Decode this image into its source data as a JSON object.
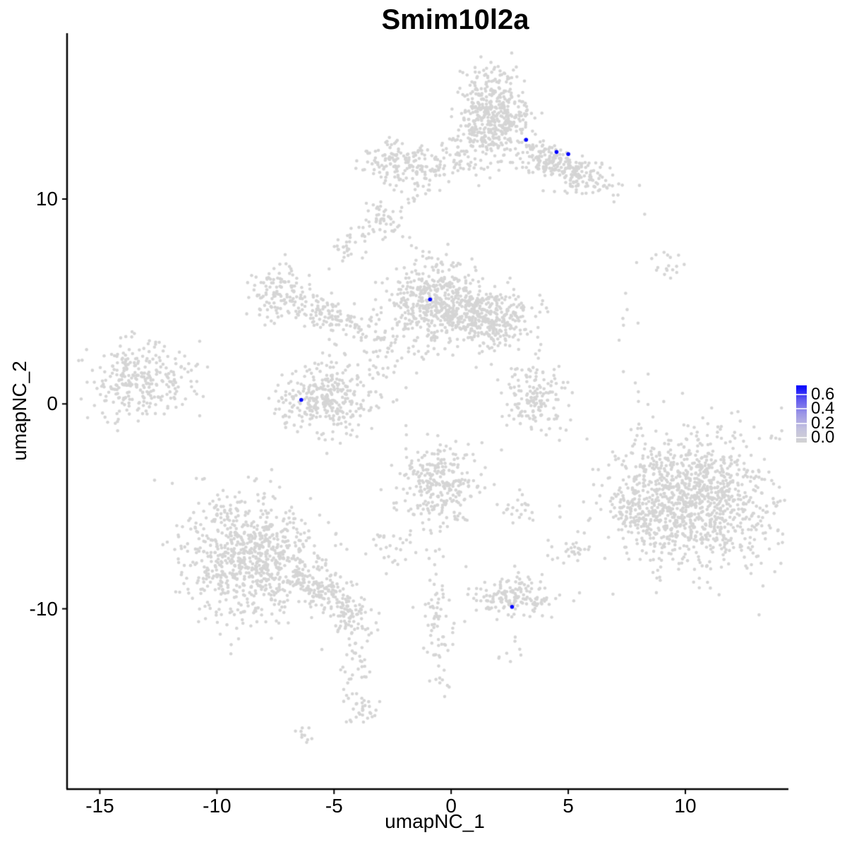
{
  "chart_data": {
    "type": "scatter",
    "title": "Smim10l2a",
    "xlabel": "umapNC_1",
    "ylabel": "umapNC_2",
    "xlim": [
      -16.4,
      14.4
    ],
    "ylim": [
      -18.8,
      18.1
    ],
    "x_ticks": [
      -15,
      -10,
      -5,
      0,
      5,
      10
    ],
    "y_ticks": [
      10,
      0,
      -10
    ],
    "grid": false,
    "legend": {
      "position": "right",
      "ticks": [
        0.6,
        0.4,
        0.2,
        0.0
      ],
      "tick_labels": [
        "0.6",
        "0.4",
        "0.2",
        "0.0"
      ],
      "bar_value_range": [
        -0.07,
        0.73
      ],
      "color_low": "#D3D3D3",
      "color_high": "#0000FF"
    },
    "points": {
      "base_color": "#D5D5D5",
      "highlight_color": "#0000FF",
      "base_radius_px": 2.3,
      "highlight_radius_px": 2.8
    },
    "seed": 42,
    "expressing_cells": [
      {
        "x": 3.2,
        "y": 12.9,
        "value": 0.6
      },
      {
        "x": 4.5,
        "y": 12.3,
        "value": 0.6
      },
      {
        "x": 5.0,
        "y": 12.2,
        "value": 0.6
      },
      {
        "x": -0.9,
        "y": 5.1,
        "value": 0.6
      },
      {
        "x": -6.4,
        "y": 0.2,
        "value": 0.6
      },
      {
        "x": 2.6,
        "y": -9.9,
        "value": 0.6
      }
    ],
    "background_clusters": [
      {
        "name": "top-center-main",
        "cx": 1.7,
        "cy": 14.1,
        "sx": 0.78,
        "sy": 1.05,
        "rot": 0,
        "n": 470
      },
      {
        "name": "top-right-arm",
        "cx": 4.7,
        "cy": 11.6,
        "sx": 1.25,
        "sy": 0.45,
        "rot": -28,
        "n": 270
      },
      {
        "name": "top-left-lobe",
        "cx": -2.0,
        "cy": 11.7,
        "sx": 0.85,
        "sy": 0.55,
        "rot": -8,
        "n": 160
      },
      {
        "name": "top-bridge",
        "cx": 0.2,
        "cy": 11.9,
        "sx": 0.6,
        "sy": 0.42,
        "rot": 0,
        "n": 50
      },
      {
        "name": "top-neck-sparse",
        "cx": -1.3,
        "cy": 10.4,
        "sx": 0.55,
        "sy": 0.4,
        "rot": 35,
        "n": 16
      },
      {
        "name": "upper-small-blob",
        "cx": -2.85,
        "cy": 9.0,
        "sx": 0.33,
        "sy": 0.5,
        "rot": 15,
        "n": 45
      },
      {
        "name": "upper-left-dots",
        "cx": -4.55,
        "cy": 7.6,
        "sx": 0.42,
        "sy": 0.42,
        "rot": 0,
        "n": 26
      },
      {
        "name": "upper-bridge-dots",
        "cx": -3.7,
        "cy": 8.35,
        "sx": 0.3,
        "sy": 0.28,
        "rot": 0,
        "n": 9
      },
      {
        "name": "mid-main",
        "cx": -0.75,
        "cy": 5.0,
        "sx": 0.9,
        "sy": 1.1,
        "rot": 0,
        "n": 430
      },
      {
        "name": "mid-right-lobe",
        "cx": 1.9,
        "cy": 4.2,
        "sx": 0.85,
        "sy": 0.7,
        "rot": 0,
        "n": 260
      },
      {
        "name": "mid-band",
        "cx": 0.6,
        "cy": 4.3,
        "sx": 0.8,
        "sy": 0.5,
        "rot": 0,
        "n": 120
      },
      {
        "name": "mid-left-ring",
        "cx": -7.3,
        "cy": 5.35,
        "sx": 0.62,
        "sy": 0.68,
        "rot": 0,
        "n": 120
      },
      {
        "name": "ring-arm",
        "cx": -5.6,
        "cy": 4.6,
        "sx": 0.9,
        "sy": 0.35,
        "rot": -25,
        "n": 70
      },
      {
        "name": "mid-left-scatter",
        "cx": -4.2,
        "cy": 3.9,
        "sx": 1.2,
        "sy": 0.5,
        "rot": -15,
        "n": 60
      },
      {
        "name": "left-c-cluster",
        "cx": -5.5,
        "cy": 0.3,
        "sx": 1.05,
        "sy": 0.85,
        "rot": 0,
        "n": 310
      },
      {
        "name": "mid-lower-bridge",
        "cx": -2.9,
        "cy": 2.3,
        "sx": 0.7,
        "sy": 0.9,
        "rot": 25,
        "n": 55
      },
      {
        "name": "far-left-cluster",
        "cx": -13.35,
        "cy": 1.1,
        "sx": 1.05,
        "sy": 0.9,
        "rot": 0,
        "n": 270
      },
      {
        "name": "far-left-tail",
        "cx": -11.0,
        "cy": 1.5,
        "sx": 0.6,
        "sy": 0.8,
        "rot": 0,
        "n": 14
      },
      {
        "name": "right-c-cluster",
        "cx": 3.5,
        "cy": 0.3,
        "sx": 0.72,
        "sy": 0.95,
        "rot": 0,
        "n": 160
      },
      {
        "name": "right-sparse-column",
        "cx": 7.85,
        "cy": -0.3,
        "sx": 0.3,
        "sy": 1.2,
        "rot": 0,
        "n": 13
      },
      {
        "name": "big-right-cluster",
        "cx": 10.3,
        "cy": -4.7,
        "sx": 1.75,
        "sy": 1.6,
        "rot": -15,
        "n": 1150
      },
      {
        "name": "big-right-wedge",
        "cx": 7.9,
        "cy": -5.3,
        "sx": 0.5,
        "sy": 0.6,
        "rot": 0,
        "n": 70
      },
      {
        "name": "bottom-left-cluster",
        "cx": -8.5,
        "cy": -7.5,
        "sx": 1.45,
        "sy": 1.55,
        "rot": 0,
        "n": 800
      },
      {
        "name": "bottom-left-arm",
        "cx": -5.6,
        "cy": -9.0,
        "sx": 1.0,
        "sy": 0.5,
        "rot": -28,
        "n": 150
      },
      {
        "name": "bottom-arm-blob",
        "cx": -4.2,
        "cy": -10.4,
        "sx": 0.45,
        "sy": 0.5,
        "rot": 0,
        "n": 60
      },
      {
        "name": "thin-vertical-trail",
        "cx": -4.1,
        "cy": -12.6,
        "sx": 0.26,
        "sy": 1.25,
        "rot": 0,
        "n": 45
      },
      {
        "name": "trail-end-blob",
        "cx": -3.8,
        "cy": -15.05,
        "sx": 0.32,
        "sy": 0.38,
        "rot": 0,
        "n": 26
      },
      {
        "name": "tiny-bottom-blob",
        "cx": -6.25,
        "cy": -16.2,
        "sx": 0.27,
        "sy": 0.22,
        "rot": 0,
        "n": 10
      },
      {
        "name": "center-lower-cluster",
        "cx": -0.5,
        "cy": -3.95,
        "sx": 0.85,
        "sy": 1.05,
        "rot": 0,
        "n": 280
      },
      {
        "name": "center-lower-pair",
        "cx": 2.9,
        "cy": -5.05,
        "sx": 0.38,
        "sy": 0.32,
        "rot": 0,
        "n": 22
      },
      {
        "name": "bottom-center-cluster",
        "cx": 2.6,
        "cy": -9.45,
        "sx": 0.92,
        "sy": 0.5,
        "rot": 0,
        "n": 160
      },
      {
        "name": "bottom-center-trail",
        "cx": -0.6,
        "cy": -10.9,
        "sx": 0.3,
        "sy": 1.5,
        "rot": 0,
        "n": 70
      },
      {
        "name": "small-lower-right",
        "cx": 5.0,
        "cy": -7.2,
        "sx": 0.38,
        "sy": 0.42,
        "rot": 0,
        "n": 28
      },
      {
        "name": "small-lower-center",
        "cx": -2.45,
        "cy": -7.05,
        "sx": 0.42,
        "sy": 0.58,
        "rot": 0,
        "n": 26
      },
      {
        "name": "upper-right-small",
        "cx": 9.25,
        "cy": 6.75,
        "sx": 0.45,
        "sy": 0.35,
        "rot": 0,
        "n": 18
      },
      {
        "name": "right-sparse-upper",
        "cx": 7.7,
        "cy": 4.3,
        "sx": 0.28,
        "sy": 0.85,
        "rot": 0,
        "n": 6
      },
      {
        "name": "below-bottom-dots",
        "cx": 2.5,
        "cy": -12.7,
        "sx": 0.28,
        "sy": 0.48,
        "rot": 0,
        "n": 8
      }
    ]
  }
}
